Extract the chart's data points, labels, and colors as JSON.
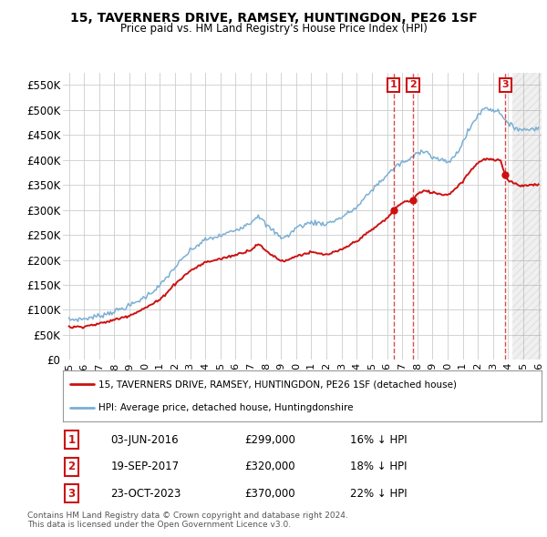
{
  "title": "15, TAVERNERS DRIVE, RAMSEY, HUNTINGDON, PE26 1SF",
  "subtitle": "Price paid vs. HM Land Registry's House Price Index (HPI)",
  "ylim": [
    0,
    575000
  ],
  "yticks": [
    0,
    50000,
    100000,
    150000,
    200000,
    250000,
    300000,
    350000,
    400000,
    450000,
    500000,
    550000
  ],
  "ytick_labels": [
    "£0",
    "£50K",
    "£100K",
    "£150K",
    "£200K",
    "£250K",
    "£300K",
    "£350K",
    "£400K",
    "£450K",
    "£500K",
    "£550K"
  ],
  "xlim_start": 1994.6,
  "xlim_end": 2026.2,
  "xtick_years": [
    1995,
    1996,
    1997,
    1998,
    1999,
    2000,
    2001,
    2002,
    2003,
    2004,
    2005,
    2006,
    2007,
    2008,
    2009,
    2010,
    2011,
    2012,
    2013,
    2014,
    2015,
    2016,
    2017,
    2018,
    2019,
    2020,
    2021,
    2022,
    2023,
    2024,
    2025,
    2026
  ],
  "hpi_color": "#7bafd4",
  "price_color": "#cc1111",
  "background_color": "#ffffff",
  "grid_color": "#cccccc",
  "future_start": 2024.25,
  "purchases": [
    {
      "label": "1",
      "date_x": 2016.42,
      "price": 299000,
      "date_str": "03-JUN-2016",
      "pct": "16%"
    },
    {
      "label": "2",
      "date_x": 2017.72,
      "price": 320000,
      "date_str": "19-SEP-2017",
      "pct": "18%"
    },
    {
      "label": "3",
      "date_x": 2023.81,
      "price": 370000,
      "date_str": "23-OCT-2023",
      "pct": "22%"
    }
  ],
  "legend_property_label": "15, TAVERNERS DRIVE, RAMSEY, HUNTINGDON, PE26 1SF (detached house)",
  "legend_hpi_label": "HPI: Average price, detached house, Huntingdonshire",
  "footnote": "Contains HM Land Registry data © Crown copyright and database right 2024.\nThis data is licensed under the Open Government Licence v3.0.",
  "hpi_anchors_x": [
    1995.0,
    1996.0,
    1997.0,
    1998.0,
    1999.0,
    2000.0,
    2001.0,
    2002.0,
    2003.0,
    2004.0,
    2005.0,
    2006.0,
    2007.0,
    2007.5,
    2008.0,
    2009.0,
    2009.5,
    2010.0,
    2011.0,
    2012.0,
    2013.0,
    2014.0,
    2015.0,
    2015.5,
    2016.0,
    2016.5,
    2017.0,
    2017.5,
    2018.0,
    2018.5,
    2019.0,
    2019.5,
    2020.0,
    2020.5,
    2021.0,
    2021.5,
    2022.0,
    2022.5,
    2023.0,
    2023.25,
    2023.5,
    2023.81,
    2024.0,
    2024.5,
    2025.0,
    2025.5,
    2026.0
  ],
  "hpi_anchors_y": [
    80000,
    82000,
    88000,
    97000,
    108000,
    125000,
    148000,
    185000,
    218000,
    240000,
    248000,
    260000,
    275000,
    290000,
    270000,
    245000,
    248000,
    265000,
    275000,
    272000,
    285000,
    305000,
    340000,
    355000,
    370000,
    385000,
    395000,
    400000,
    415000,
    420000,
    405000,
    400000,
    395000,
    408000,
    435000,
    465000,
    490000,
    505000,
    500000,
    498000,
    495000,
    480000,
    470000,
    465000,
    460000,
    462000,
    465000
  ],
  "prop_anchors_x": [
    1995.0,
    1996.0,
    1997.0,
    1998.0,
    1999.0,
    2000.0,
    2001.0,
    2002.0,
    2003.0,
    2004.0,
    2005.0,
    2006.0,
    2007.0,
    2007.5,
    2008.0,
    2009.0,
    2009.5,
    2010.0,
    2011.0,
    2012.0,
    2013.0,
    2014.0,
    2015.0,
    2015.5,
    2016.0,
    2016.42,
    2016.8,
    2017.0,
    2017.5,
    2017.72,
    2018.0,
    2018.5,
    2019.0,
    2019.5,
    2020.0,
    2020.5,
    2021.0,
    2021.5,
    2022.0,
    2022.5,
    2023.0,
    2023.5,
    2023.81,
    2024.0,
    2024.5,
    2025.0,
    2025.5,
    2026.0
  ],
  "prop_anchors_y": [
    65000,
    67000,
    72000,
    80000,
    89000,
    103000,
    120000,
    152000,
    178000,
    195000,
    202000,
    210000,
    220000,
    232000,
    218000,
    198000,
    200000,
    208000,
    215000,
    210000,
    220000,
    238000,
    260000,
    272000,
    283000,
    299000,
    310000,
    315000,
    318000,
    320000,
    332000,
    338000,
    335000,
    332000,
    330000,
    342000,
    358000,
    378000,
    395000,
    402000,
    400000,
    398000,
    370000,
    360000,
    352000,
    348000,
    350000,
    352000
  ]
}
